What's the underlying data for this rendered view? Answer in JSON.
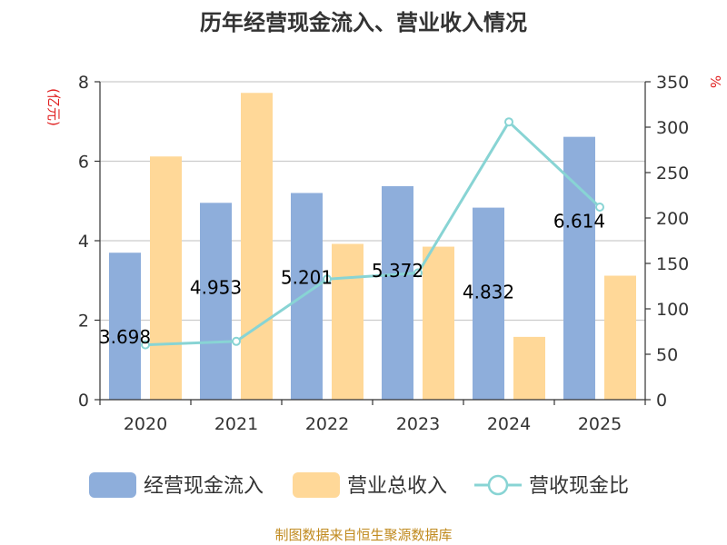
{
  "chart_data": {
    "type": "bar",
    "title": "历年经营现金流入、营业收入情况",
    "categories": [
      "2020",
      "2021",
      "2022",
      "2023",
      "2024",
      "2025"
    ],
    "y_left_unit": "(亿元)",
    "y_right_unit": "%",
    "ylim_left": [
      0,
      8
    ],
    "yticks_left": [
      0,
      2,
      4,
      6,
      8
    ],
    "ylim_right": [
      0,
      350
    ],
    "yticks_right": [
      0,
      50,
      100,
      150,
      200,
      250,
      300,
      350
    ],
    "grid": true,
    "legend_position": "bottom",
    "series": [
      {
        "name": "经营现金流入",
        "type": "bar",
        "axis": "left",
        "color": "#8eaedb",
        "values": [
          3.698,
          4.953,
          5.201,
          5.372,
          4.832,
          6.614
        ],
        "labels": [
          "3.698",
          "4.953",
          "5.201",
          "5.372",
          "4.832",
          "6.614"
        ]
      },
      {
        "name": "营业总收入",
        "type": "bar",
        "axis": "left",
        "color": "#ffd898",
        "values": [
          6.12,
          7.72,
          3.92,
          3.85,
          1.58,
          3.12
        ]
      },
      {
        "name": "营收现金比",
        "type": "line",
        "axis": "right",
        "color": "#88d4d4",
        "values": [
          60.4,
          64.2,
          132.7,
          139.5,
          305.8,
          212.0
        ]
      }
    ],
    "source": "制图数据来自恒生聚源数据库"
  }
}
